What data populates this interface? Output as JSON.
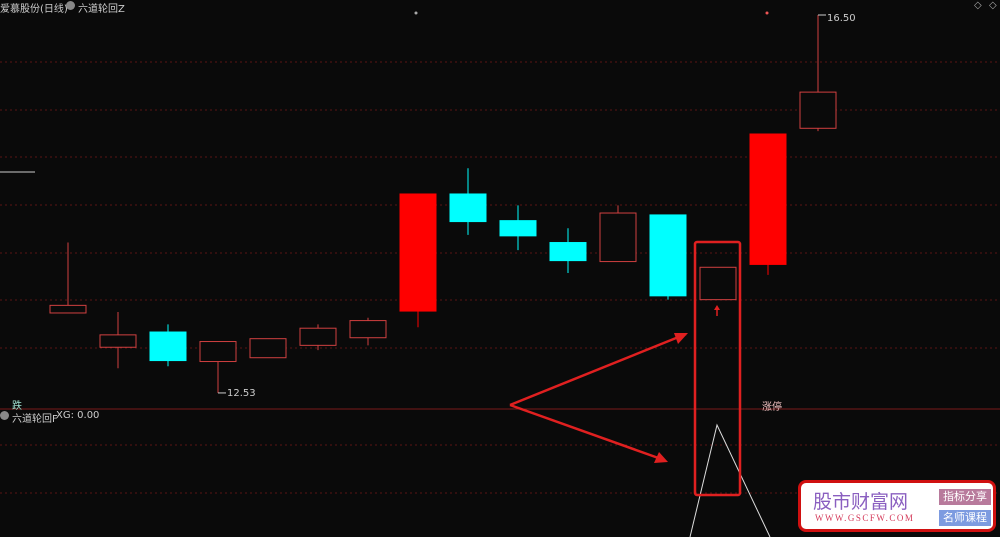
{
  "header": {
    "stock": "爱慕股份(日线)",
    "indicator": "六道轮回Z"
  },
  "sub_panel": {
    "indicator": "六道轮回F",
    "value_label": "XG: 0.00",
    "left_label": "跌",
    "right_label": "涨停"
  },
  "price_labels": {
    "high": "16.50",
    "low": "12.53"
  },
  "colors": {
    "up": "#ff0000",
    "down": "#00ffff",
    "hollow": "#d04040",
    "grid": "#5a1414",
    "annotation": "#e02020"
  },
  "candles": [
    {
      "o": 13.37,
      "h": 14.11,
      "l": 13.37,
      "c": 13.45,
      "style": "hollow"
    },
    {
      "o": 13.01,
      "h": 13.38,
      "l": 12.79,
      "c": 13.14,
      "style": "hollow"
    },
    {
      "o": 13.17,
      "h": 13.25,
      "l": 12.81,
      "c": 12.87,
      "style": "down"
    },
    {
      "o": 12.86,
      "h": 13.07,
      "l": 12.53,
      "c": 13.07,
      "style": "hollow"
    },
    {
      "o": 12.9,
      "h": 13.1,
      "l": 12.9,
      "c": 13.1,
      "style": "hollow"
    },
    {
      "o": 13.03,
      "h": 13.25,
      "l": 12.98,
      "c": 13.21,
      "style": "hollow"
    },
    {
      "o": 13.11,
      "h": 13.32,
      "l": 13.03,
      "c": 13.29,
      "style": "hollow"
    },
    {
      "o": 13.39,
      "h": 14.62,
      "l": 13.22,
      "c": 14.62,
      "style": "up"
    },
    {
      "o": 14.62,
      "h": 14.89,
      "l": 14.19,
      "c": 14.33,
      "style": "down"
    },
    {
      "o": 14.34,
      "h": 14.5,
      "l": 14.03,
      "c": 14.18,
      "style": "down"
    },
    {
      "o": 14.11,
      "h": 14.26,
      "l": 13.79,
      "c": 13.92,
      "style": "down"
    },
    {
      "o": 13.91,
      "h": 14.5,
      "l": 13.91,
      "c": 14.42,
      "style": "hollow"
    },
    {
      "o": 14.4,
      "h": 14.4,
      "l": 13.51,
      "c": 13.55,
      "style": "down"
    },
    {
      "o": 13.51,
      "h": 13.85,
      "l": 13.51,
      "c": 13.85,
      "style": "hollow"
    },
    {
      "o": 13.88,
      "h": 15.25,
      "l": 13.77,
      "c": 15.25,
      "style": "up"
    },
    {
      "o": 15.31,
      "h": 16.5,
      "l": 15.28,
      "c": 15.69,
      "style": "hollow"
    }
  ],
  "watermark": {
    "name": "股市财富网",
    "url": "WWW.GSCFW.COM",
    "badge1": "指标分享",
    "badge2": "名师课程"
  }
}
